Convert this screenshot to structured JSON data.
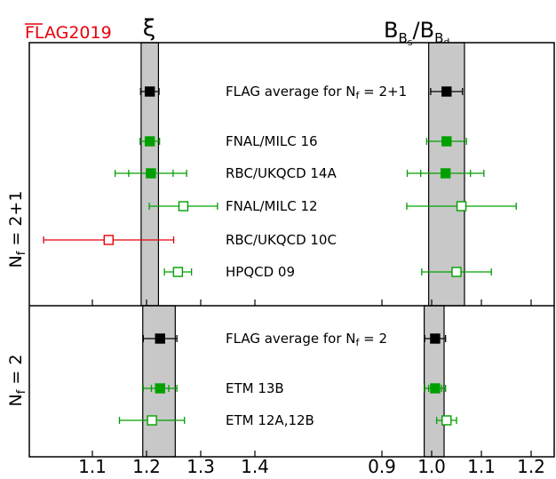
{
  "logo": {
    "text": "FLAG2019",
    "color": "#e8000b"
  },
  "left_header": "ξ",
  "right_header": {
    "main": "B",
    "sub1": "B",
    "sub2": "s",
    "slash": "/",
    "main2": "B",
    "sub3": "B",
    "sub4": "d"
  },
  "panel_labels": [
    {
      "main": "N",
      "sub": "f",
      "rest": " = 2+1"
    },
    {
      "main": "N",
      "sub": "f",
      "rest": " = 2"
    }
  ],
  "colors": {
    "average": "#000000",
    "included": "#00a000",
    "not_included": "#00a000",
    "excluded": "#e8000b",
    "band": "#c8c8c8"
  },
  "chart_data": {
    "type": "scatter",
    "subtype": "forest-plot",
    "xi_axis": {
      "ticks": [
        1.1,
        1.2,
        1.3,
        1.4
      ],
      "tick_labels": [
        "1.1",
        "1.2",
        "1.3",
        "1.4"
      ]
    },
    "ratio_axis": {
      "ticks": [
        0.9,
        1.0,
        1.1,
        1.2
      ],
      "tick_labels": [
        "0.9",
        "1.0",
        "1.1",
        "1.2"
      ]
    },
    "panels": [
      {
        "label": "Nf = 2+1",
        "xi_band": [
          1.19,
          1.222
        ],
        "ratio_band": [
          0.994,
          1.066
        ],
        "rows": [
          {
            "name": "FLAG average for Nf = 2+1",
            "label_main": "FLAG average for N",
            "label_sub": "f",
            "label_rest": " = 2+1",
            "kind": "average",
            "xi": {
              "value": 1.206,
              "err": 0.017,
              "syst": null
            },
            "ratio": {
              "value": 1.03,
              "err": 0.032,
              "syst": null
            }
          },
          {
            "name": "FNAL/MILC 16",
            "kind": "included",
            "xi": {
              "value": 1.206,
              "err": 0.018,
              "syst": null
            },
            "ratio": {
              "value": 1.03,
              "err": 0.04,
              "syst": null
            }
          },
          {
            "name": "RBC/UKQCD 14A",
            "kind": "included",
            "xi": {
              "value": 1.208,
              "err": 0.066,
              "syst": 0.041
            },
            "ratio": {
              "value": 1.028,
              "err": 0.077,
              "syst": 0.05
            }
          },
          {
            "name": "FNAL/MILC 12",
            "kind": "not-included",
            "xi": {
              "value": 1.268,
              "err": 0.063,
              "syst": null
            },
            "ratio": {
              "value": 1.06,
              "err": 0.11,
              "syst": null
            }
          },
          {
            "name": "RBC/UKQCD 10C",
            "kind": "excluded",
            "xi": {
              "value": 1.13,
              "err": 0.12,
              "syst": null
            },
            "ratio": null
          },
          {
            "name": "HPQCD 09",
            "kind": "not-included",
            "xi": {
              "value": 1.258,
              "err": 0.025,
              "syst": null
            },
            "ratio": {
              "value": 1.05,
              "err": 0.07,
              "syst": null
            }
          }
        ]
      },
      {
        "label": "Nf = 2",
        "xi_band": [
          1.193,
          1.253
        ],
        "ratio_band": [
          0.985,
          1.025
        ],
        "rows": [
          {
            "name": "FLAG average for Nf = 2",
            "label_main": "FLAG average for N",
            "label_sub": "f",
            "label_rest": " = 2",
            "kind": "average",
            "xi": {
              "value": 1.225,
              "err": 0.031,
              "syst": null
            },
            "ratio": {
              "value": 1.007,
              "err": 0.021,
              "syst": null
            }
          },
          {
            "name": "ETM 13B",
            "kind": "included",
            "xi": {
              "value": 1.225,
              "err": 0.031,
              "syst": 0.016
            },
            "ratio": {
              "value": 1.007,
              "err": 0.021,
              "syst": 0.013
            }
          },
          {
            "name": "ETM 12A,12B",
            "kind": "not-included",
            "xi": {
              "value": 1.21,
              "err": 0.06,
              "syst": null
            },
            "ratio": {
              "value": 1.03,
              "err": 0.02,
              "syst": null
            }
          }
        ]
      }
    ]
  }
}
